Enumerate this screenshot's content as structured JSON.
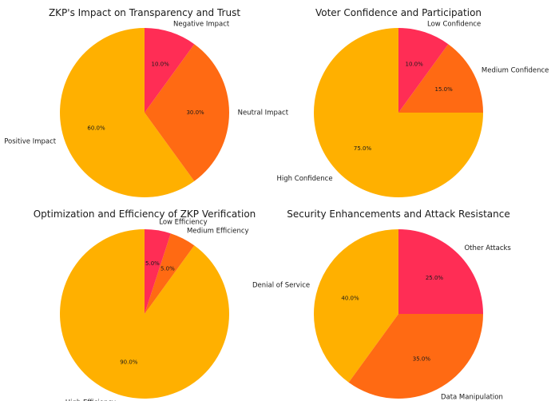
{
  "colors": {
    "positive": "#ffb000",
    "neutral": "#ff6a13",
    "negative": "#ff2d55"
  },
  "chart_data": [
    {
      "type": "pie",
      "title": "ZKP's Impact on Transparency and Trust",
      "labels": [
        "Positive Impact",
        "Neutral Impact",
        "Negative Impact"
      ],
      "values": [
        60,
        30,
        10
      ],
      "pct_labels": [
        "60.0%",
        "30.0%",
        "10.0%"
      ],
      "colors": [
        "#ffb000",
        "#ff6a13",
        "#ff2d55"
      ],
      "start_angle": 90,
      "direction": "counterclockwise",
      "legend": "none"
    },
    {
      "type": "pie",
      "title": "Voter Confidence and Participation",
      "labels": [
        "High Confidence",
        "Medium Confidence",
        "Low Confidence"
      ],
      "values": [
        75,
        15,
        10
      ],
      "pct_labels": [
        "75.0%",
        "15.0%",
        "10.0%"
      ],
      "colors": [
        "#ffb000",
        "#ff6a13",
        "#ff2d55"
      ],
      "start_angle": 90,
      "direction": "counterclockwise",
      "legend": "none"
    },
    {
      "type": "pie",
      "title": "Optimization and Efficiency of ZKP Verification",
      "labels": [
        "High Efficiency",
        "Medium Efficiency",
        "Low Efficiency"
      ],
      "values": [
        90,
        5,
        5
      ],
      "pct_labels": [
        "90.0%",
        "5.0%",
        "5.0%"
      ],
      "colors": [
        "#ffb000",
        "#ff6a13",
        "#ff2d55"
      ],
      "start_angle": 90,
      "direction": "counterclockwise",
      "legend": "none"
    },
    {
      "type": "pie",
      "title": "Security Enhancements and Attack Resistance",
      "labels": [
        "Denial of Service",
        "Data Manipulation",
        "Other Attacks"
      ],
      "values": [
        40,
        35,
        25
      ],
      "pct_labels": [
        "40.0%",
        "35.0%",
        "25.0%"
      ],
      "colors": [
        "#ffb000",
        "#ff6a13",
        "#ff2d55"
      ],
      "start_angle": 90,
      "direction": "counterclockwise",
      "legend": "none"
    }
  ]
}
